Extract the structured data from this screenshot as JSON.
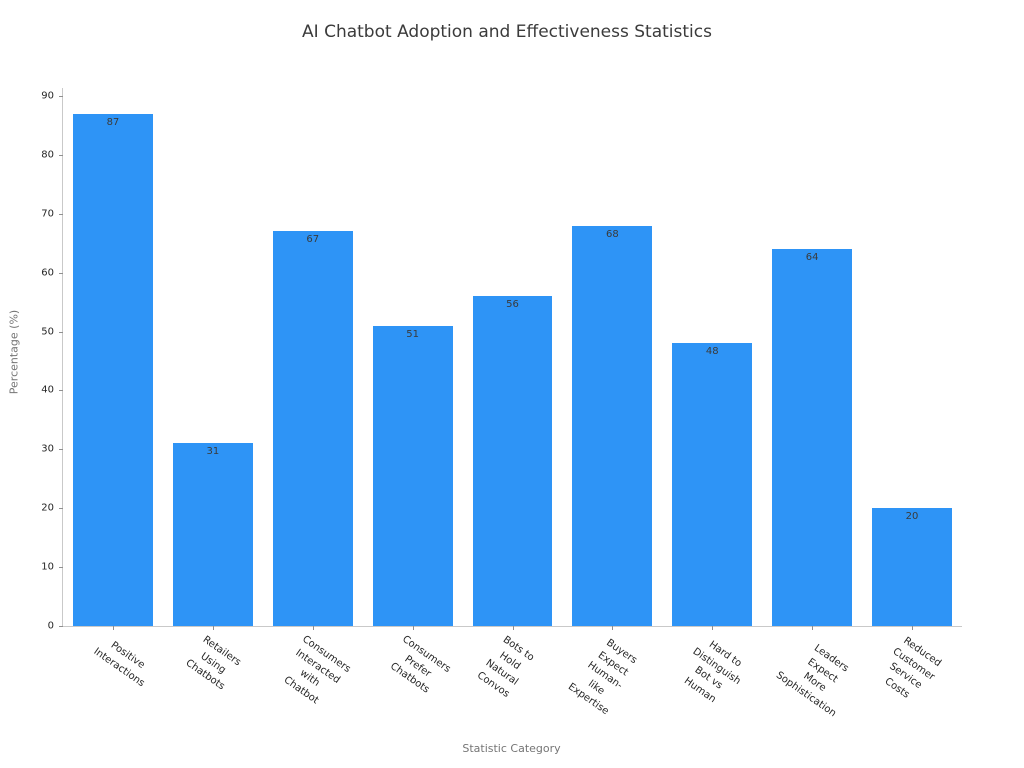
{
  "chart_data": {
    "type": "bar",
    "title": "AI Chatbot Adoption and Effectiveness Statistics",
    "xlabel": "Statistic Category",
    "ylabel": "Percentage (%)",
    "categories": [
      "Positive\nInteractions",
      "Retailers Using\nChatbots",
      "Consumers Interacted\nwith Chatbot",
      "Consumers Prefer\nChatbots",
      "Bots to Hold\nNatural Convos",
      "Buyers Expect\nHuman-like Expertise",
      "Hard to Distinguish\nBot vs Human",
      "Leaders Expect\nMore Sophistication",
      "Reduced Customer\nService Costs"
    ],
    "values": [
      87,
      31,
      67,
      51,
      56,
      68,
      48,
      64,
      20
    ],
    "value_labels": [
      "87",
      "31",
      "67",
      "51",
      "56",
      "68",
      "48",
      "64",
      "20"
    ],
    "yticks": [
      0,
      10,
      20,
      30,
      40,
      50,
      60,
      70,
      80,
      90
    ],
    "ylim": [
      0,
      91.35
    ],
    "grid": false,
    "legend": null,
    "category_label_rotation_deg": -35,
    "colors": {
      "bar_fill": "#2e94f6",
      "value_label": "#3a3a3a",
      "tick_label": "#262626",
      "axis_label": "#757575",
      "title": "#3b3b3b",
      "spine": "#c9c9c9",
      "tick_mark": "#8f8f8f",
      "background": "#ffffff"
    }
  }
}
